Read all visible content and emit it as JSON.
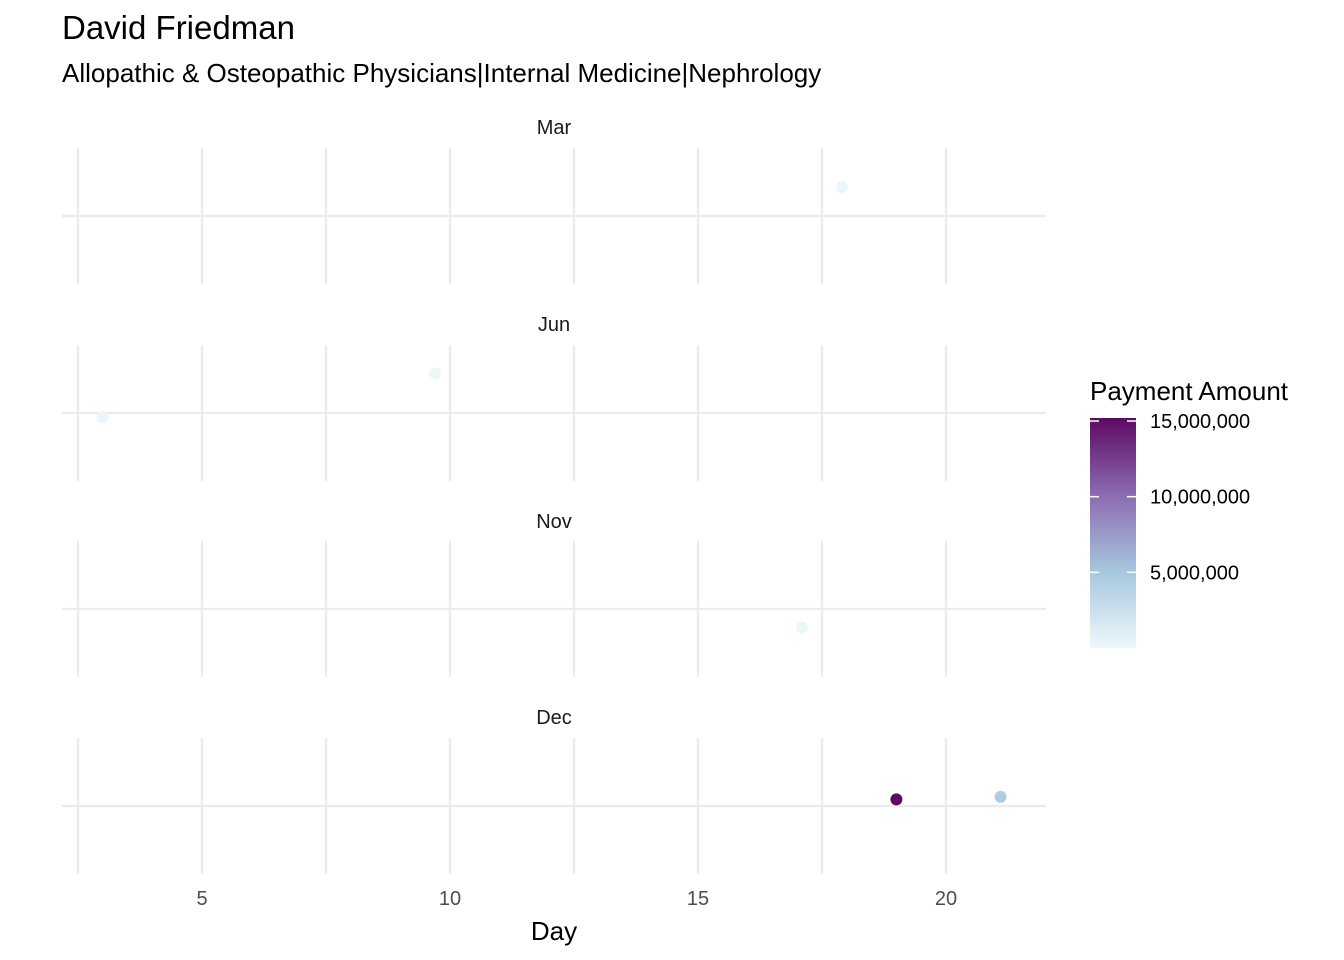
{
  "chart_data": {
    "type": "scatter",
    "title": "David Friedman",
    "subtitle": "Allopathic & Osteopathic Physicians|Internal Medicine|Nephrology",
    "xlabel": "Day",
    "ylabel": "",
    "xlim": [
      2.5,
      22
    ],
    "x_ticks": [
      5,
      10,
      15,
      20
    ],
    "grid": true,
    "facets": [
      {
        "label": "Mar",
        "points": [
          {
            "day": 17.9,
            "jitter": 0.22,
            "amount": 200000
          }
        ]
      },
      {
        "label": "Jun",
        "points": [
          {
            "day": 9.7,
            "jitter": 0.3,
            "amount": 150000
          },
          {
            "day": 3.0,
            "jitter": -0.03,
            "amount": 250000
          }
        ]
      },
      {
        "label": "Nov",
        "points": [
          {
            "day": 17.1,
            "jitter": -0.14,
            "amount": 180000
          }
        ]
      },
      {
        "label": "Dec",
        "points": [
          {
            "day": 19.0,
            "jitter": 0.05,
            "amount": 15200000
          },
          {
            "day": 21.1,
            "jitter": 0.07,
            "amount": 4500000
          }
        ]
      }
    ],
    "legend": {
      "title": "Payment Amount",
      "position": "right",
      "breaks": [
        {
          "value": 15000000,
          "label": "15,000,000"
        },
        {
          "value": 10000000,
          "label": "10,000,000"
        },
        {
          "value": 5000000,
          "label": "5,000,000"
        }
      ],
      "range": [
        0,
        15200000
      ],
      "colors": [
        "#eef8fb",
        "#a6c6df",
        "#8c6bb1",
        "#5c0a62"
      ]
    }
  }
}
